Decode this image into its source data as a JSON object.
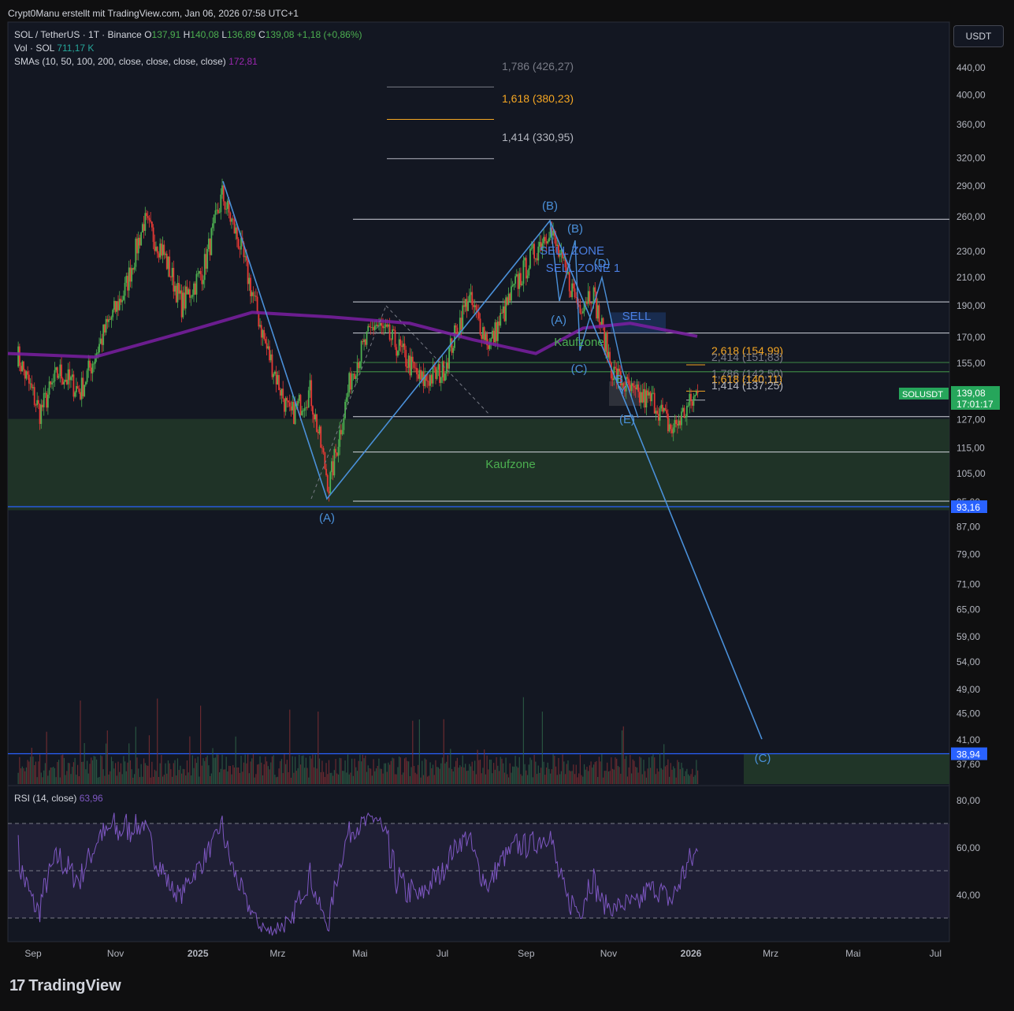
{
  "header": {
    "credit": "Crypt0Manu erstellt mit TradingView.com, Jan 06, 2026 07:58 UTC+1",
    "symbol": "SOL / TetherUS · 1T · Binance",
    "o_label": "O",
    "o": "137,91",
    "h_label": "H",
    "h": "140,08",
    "l_label": "L",
    "l": "136,89",
    "c_label": "C",
    "c": "139,08",
    "change": "+1,18 (+0,86%)",
    "vol_label": "Vol · SOL",
    "vol": "711,17 K",
    "sma_label": "SMAs (10, 50, 100, 200, close, close, close, close)",
    "sma": "172,81",
    "rsi_label": "RSI (14, close)",
    "rsi": "63,96",
    "currency": "USDT",
    "logo": "TradingView"
  },
  "chart_data": [
    {
      "type": "candlestick",
      "title": "SOL / TetherUS · 1T · Binance",
      "x_tick_labels": [
        "Sep",
        "Nov",
        "2025",
        "Mrz",
        "Mai",
        "Jul",
        "Sep",
        "Nov",
        "2026",
        "Mrz",
        "Mai",
        "Jul"
      ],
      "y_tick_labels": [
        "440,00",
        "400,00",
        "360,00",
        "320,00",
        "290,00",
        "260,00",
        "230,00",
        "210,00",
        "190,00",
        "170,00",
        "155,00",
        "127,00",
        "115,00",
        "105,00",
        "95,00",
        "87,00",
        "79,00",
        "71,00",
        "65,00",
        "59,00",
        "54,00",
        "49,00",
        "45,00",
        "41,00",
        "37,60"
      ],
      "y_scale": "log",
      "price_path": [
        [
          "2024-08-20",
          160
        ],
        [
          "2024-09-06",
          130
        ],
        [
          "2024-09-20",
          150
        ],
        [
          "2024-10-06",
          140
        ],
        [
          "2024-10-25",
          175
        ],
        [
          "2024-11-08",
          200
        ],
        [
          "2024-11-22",
          255
        ],
        [
          "2024-12-06",
          230
        ],
        [
          "2024-12-20",
          190
        ],
        [
          "2025-01-05",
          215
        ],
        [
          "2025-01-19",
          280
        ],
        [
          "2025-02-01",
          235
        ],
        [
          "2025-02-20",
          165
        ],
        [
          "2025-03-10",
          128
        ],
        [
          "2025-03-25",
          140
        ],
        [
          "2025-04-08",
          100
        ],
        [
          "2025-04-25",
          150
        ],
        [
          "2025-05-12",
          178
        ],
        [
          "2025-05-28",
          165
        ],
        [
          "2025-06-15",
          145
        ],
        [
          "2025-07-01",
          150
        ],
        [
          "2025-07-20",
          195
        ],
        [
          "2025-08-05",
          165
        ],
        [
          "2025-08-25",
          205
        ],
        [
          "2025-09-18",
          250
        ],
        [
          "2025-10-01",
          210
        ],
        [
          "2025-10-10",
          190
        ],
        [
          "2025-10-20",
          200
        ],
        [
          "2025-11-04",
          150
        ],
        [
          "2025-11-20",
          138
        ],
        [
          "2025-12-05",
          135
        ],
        [
          "2025-12-18",
          122
        ],
        [
          "2026-01-06",
          139.08
        ]
      ],
      "price_label": "SOLUSDT",
      "last_price": "139,08",
      "countdown": "17:01:17",
      "level_labels": [
        "93,16",
        "38,94"
      ],
      "fib_labels": [
        "1,786 (426,27)",
        "1,618 (380,23)",
        "1,414 (330,95)",
        "2,618 (154,99)",
        "2,414 (151,83)",
        "1,786 (142,50)",
        "1,618 (140,11)",
        "1,414 (137,25)"
      ],
      "wave_labels": [
        "(B)",
        "(B)",
        "(A)",
        "(A)",
        "(C)",
        "(D)",
        "(E)",
        "(C)",
        "B",
        "Y"
      ],
      "zone_labels": [
        "SELL ZONE",
        "SELL ZONE 1",
        "SELL",
        "Kaufzone",
        "Kaufzone"
      ],
      "colors": {
        "up": "#4caf50",
        "down": "#e53935",
        "sma": "#7b1fa2",
        "wave": "#4a90d9",
        "zone": "#1f3a2c",
        "fib_orange": "#f5a623"
      }
    },
    {
      "type": "line",
      "title": "RSI (14, close)",
      "y_tick_labels": [
        "80,00",
        "60,00",
        "40,00"
      ],
      "ylim": [
        20,
        85
      ],
      "bands": [
        70,
        50,
        30
      ],
      "last": 63.96,
      "color": "#7e57c2"
    }
  ]
}
